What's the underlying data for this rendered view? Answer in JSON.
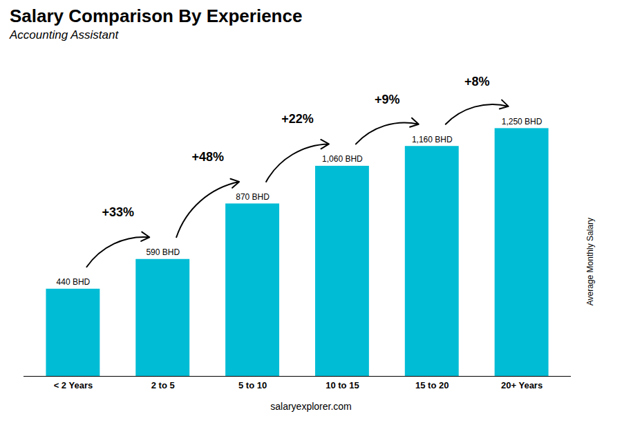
{
  "chart_data": {
    "type": "bar",
    "title": "Salary Comparison By Experience",
    "subtitle": "Accounting Assistant",
    "ylabel": "Average Monthly Salary",
    "source": "salaryexplorer.com",
    "categories": [
      "< 2 Years",
      "2 to 5",
      "5 to 10",
      "10 to 15",
      "15 to 20",
      "20+ Years"
    ],
    "values": [
      440,
      590,
      870,
      1060,
      1160,
      1250
    ],
    "value_labels": [
      "440 BHD",
      "590 BHD",
      "870 BHD",
      "1,060 BHD",
      "1,160 BHD",
      "1,250 BHD"
    ],
    "data_labels": true,
    "annotations": [
      null,
      "+33%",
      "+48%",
      "+22%",
      "+9%",
      "+8%"
    ],
    "color": "#00bcd4",
    "ylim": [
      0,
      1600
    ],
    "tick_labels": "x"
  }
}
